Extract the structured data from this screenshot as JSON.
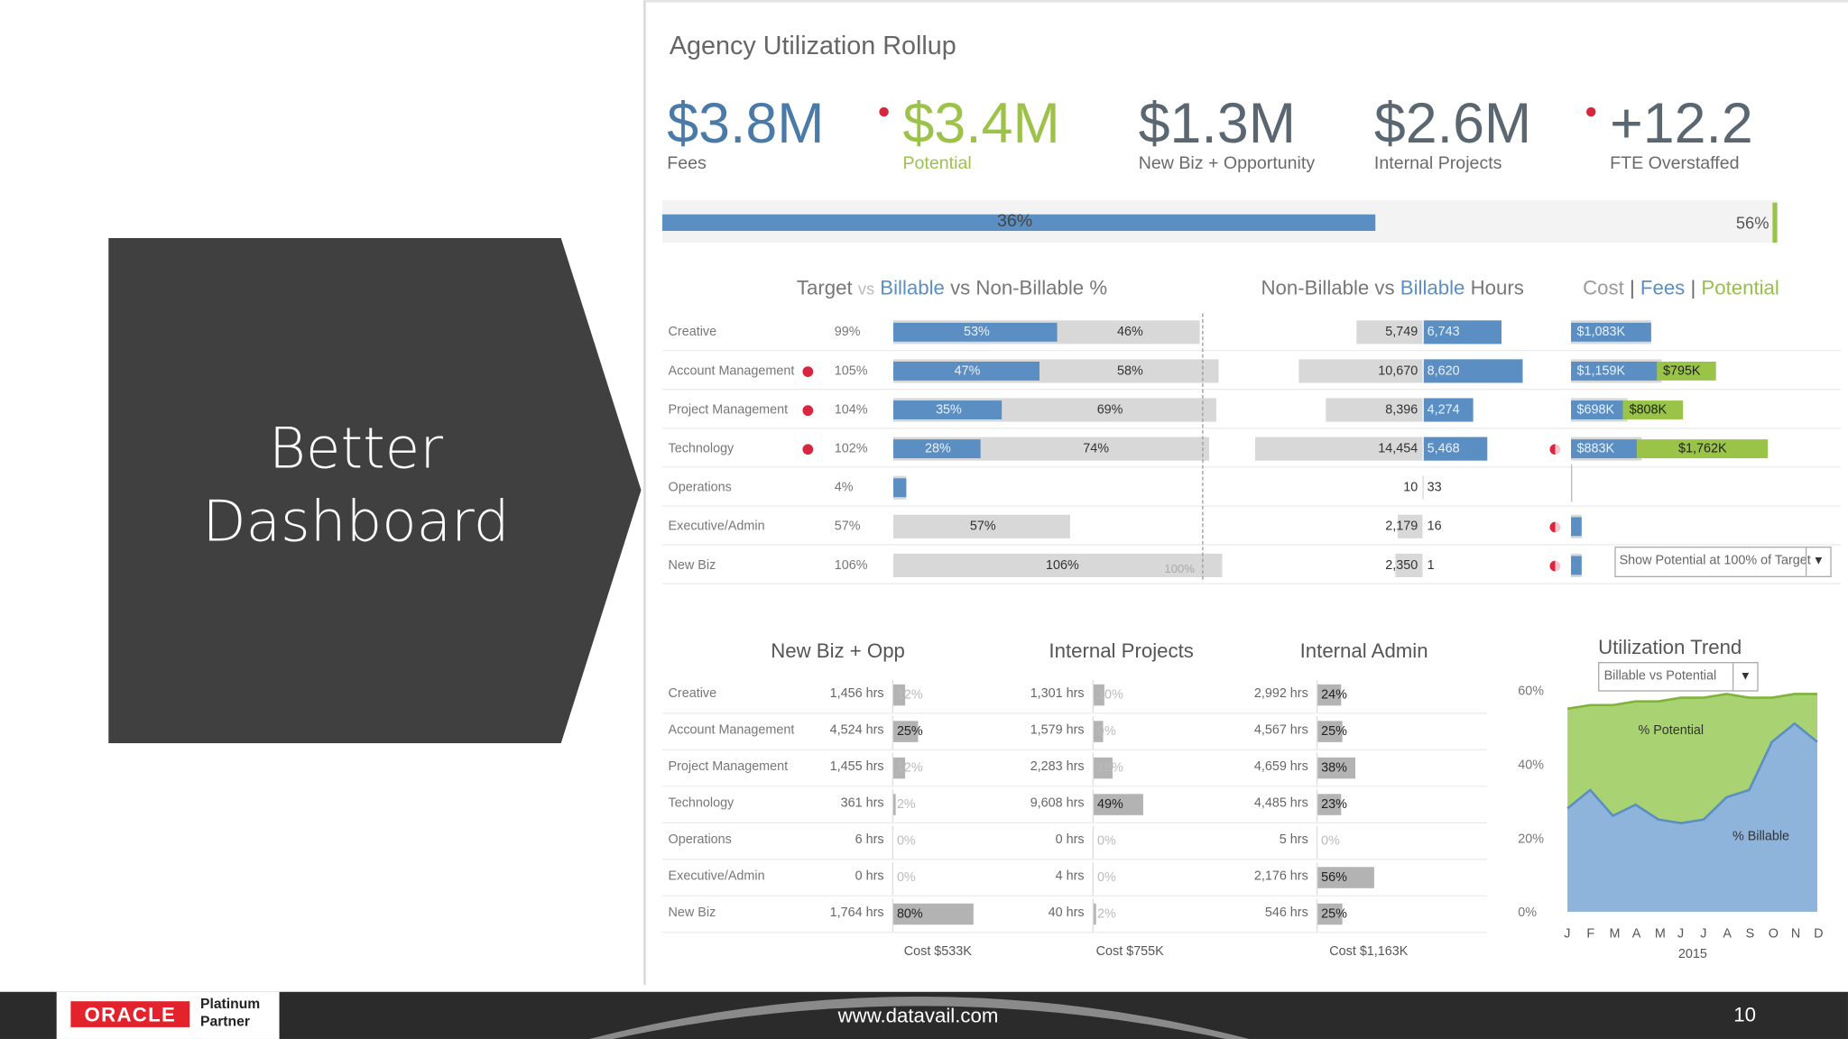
{
  "slide": {
    "title_line1": "Better",
    "title_line2": "Dashboard",
    "url": "www.datavail.com",
    "page_number": "10"
  },
  "branding": {
    "oracle": "ORACLE",
    "partner_line1": "Platinum",
    "partner_line2": "Partner"
  },
  "dashboard": {
    "title": "Agency Utilization Rollup",
    "kpis": [
      {
        "value": "$3.8M",
        "label": "Fees"
      },
      {
        "value": "$3.4M",
        "label": "Potential",
        "flag": true
      },
      {
        "value": "$1.3M",
        "label": "New Biz + Opportunity"
      },
      {
        "value": "$2.6M",
        "label": "Internal Projects"
      },
      {
        "value": "+12.2",
        "label": "FTE Overstaffed",
        "flag": true
      }
    ],
    "progress": {
      "fill_percent": 56,
      "mid_label": "36%",
      "end_label": "56%"
    },
    "section1": {
      "title_target": "Target",
      "title_vs1": "vs",
      "title_billable": "Billable",
      "title_rest": "vs Non-Billable %",
      "hours_title_1": "Non-Billable vs",
      "hours_title_2": "Billable",
      "hours_title_3": "Hours",
      "cost_title_cost": "Cost",
      "cost_title_fees": "Fees",
      "cost_title_potential": "Potential",
      "sep": "|",
      "marker_100": "100%",
      "potential_select": "Show Potential at 100% of Target",
      "rows": [
        {
          "name": "Creative",
          "flag": false,
          "target": "99%",
          "billable": 53,
          "billable_lbl": "53%",
          "nonbillable": 46,
          "nonbillable_lbl": "46%",
          "nb_hours": 5749,
          "nb_hours_lbl": "5,749",
          "b_hours": 6743,
          "b_hours_lbl": "6,743",
          "half": false,
          "cost": 1083,
          "cost_lbl": "$1,083K",
          "pot": 0,
          "pot_lbl": ""
        },
        {
          "name": "Account Management",
          "flag": true,
          "target": "105%",
          "billable": 47,
          "billable_lbl": "47%",
          "nonbillable": 58,
          "nonbillable_lbl": "58%",
          "nb_hours": 10670,
          "nb_hours_lbl": "10,670",
          "b_hours": 8620,
          "b_hours_lbl": "8,620",
          "half": false,
          "cost": 1159,
          "cost_lbl": "$1,159K",
          "pot": 795,
          "pot_lbl": "$795K"
        },
        {
          "name": "Project Management",
          "flag": true,
          "target": "104%",
          "billable": 35,
          "billable_lbl": "35%",
          "nonbillable": 69,
          "nonbillable_lbl": "69%",
          "nb_hours": 8396,
          "nb_hours_lbl": "8,396",
          "b_hours": 4274,
          "b_hours_lbl": "4,274",
          "half": false,
          "cost": 698,
          "cost_lbl": "$698K",
          "pot": 808,
          "pot_lbl": "$808K"
        },
        {
          "name": "Technology",
          "flag": true,
          "target": "102%",
          "billable": 28,
          "billable_lbl": "28%",
          "nonbillable": 74,
          "nonbillable_lbl": "74%",
          "nb_hours": 14454,
          "nb_hours_lbl": "14,454",
          "b_hours": 5468,
          "b_hours_lbl": "5,468",
          "half": true,
          "cost": 883,
          "cost_lbl": "$883K",
          "pot": 1762,
          "pot_lbl": "$1,762K"
        },
        {
          "name": "Operations",
          "flag": false,
          "target": "4%",
          "billable": 4,
          "billable_lbl": "",
          "nonbillable": 0,
          "nonbillable_lbl": "",
          "nb_hours": 10,
          "nb_hours_lbl": "10",
          "b_hours": 33,
          "b_hours_lbl": "33",
          "half": false,
          "cost": 0,
          "cost_lbl": "",
          "pot": 0,
          "pot_lbl": ""
        },
        {
          "name": "Executive/Admin",
          "flag": false,
          "target": "57%",
          "billable": 0,
          "billable_lbl": "",
          "nonbillable": 57,
          "nonbillable_lbl": "57%",
          "nb_hours": 2179,
          "nb_hours_lbl": "2,179",
          "b_hours": 16,
          "b_hours_lbl": "16",
          "half": true,
          "cost": 30,
          "cost_lbl": "",
          "pot": 0,
          "pot_lbl": ""
        },
        {
          "name": "New Biz",
          "flag": false,
          "target": "106%",
          "billable": 0,
          "billable_lbl": "",
          "nonbillable": 106,
          "nonbillable_lbl": "106%",
          "nb_hours": 2350,
          "nb_hours_lbl": "2,350",
          "b_hours": 1,
          "b_hours_lbl": "1",
          "half": true,
          "cost": 30,
          "cost_lbl": "",
          "pot": 0,
          "pot_lbl": ""
        }
      ]
    },
    "section2": {
      "titles": [
        "New Biz + Opp",
        "Internal Projects",
        "Internal Admin"
      ],
      "costs": [
        "Cost  $533K",
        "Cost  $755K",
        "Cost  $1,163K"
      ],
      "rows": [
        {
          "name": "Creative",
          "nb_hrs": "1,456 hrs",
          "nb_pct": 12,
          "nb_lbl": "12%",
          "ip_hrs": "1,301 hrs",
          "ip_pct": 10,
          "ip_lbl": "10%",
          "ia_hrs": "2,992 hrs",
          "ia_pct": 24,
          "ia_lbl": "24%"
        },
        {
          "name": "Account Management",
          "nb_hrs": "4,524 hrs",
          "nb_pct": 25,
          "nb_lbl": "25%",
          "ip_hrs": "1,579 hrs",
          "ip_pct": 9,
          "ip_lbl": "9%",
          "ia_hrs": "4,567 hrs",
          "ia_pct": 25,
          "ia_lbl": "25%"
        },
        {
          "name": "Project Management",
          "nb_hrs": "1,455 hrs",
          "nb_pct": 12,
          "nb_lbl": "12%",
          "ip_hrs": "2,283 hrs",
          "ip_pct": 19,
          "ip_lbl": "19%",
          "ia_hrs": "4,659 hrs",
          "ia_pct": 38,
          "ia_lbl": "38%"
        },
        {
          "name": "Technology",
          "nb_hrs": "361 hrs",
          "nb_pct": 2,
          "nb_lbl": "2%",
          "ip_hrs": "9,608 hrs",
          "ip_pct": 49,
          "ip_lbl": "49%",
          "ia_hrs": "4,485 hrs",
          "ia_pct": 23,
          "ia_lbl": "23%"
        },
        {
          "name": "Operations",
          "nb_hrs": "6 hrs",
          "nb_pct": 0,
          "nb_lbl": "0%",
          "ip_hrs": "0 hrs",
          "ip_pct": 0,
          "ip_lbl": "0%",
          "ia_hrs": "5 hrs",
          "ia_pct": 0,
          "ia_lbl": "0%"
        },
        {
          "name": "Executive/Admin",
          "nb_hrs": "0 hrs",
          "nb_pct": 0,
          "nb_lbl": "0%",
          "ip_hrs": "4 hrs",
          "ip_pct": 0,
          "ip_lbl": "0%",
          "ia_hrs": "2,176 hrs",
          "ia_pct": 56,
          "ia_lbl": "56%"
        },
        {
          "name": "New Biz",
          "nb_hrs": "1,764 hrs",
          "nb_pct": 80,
          "nb_lbl": "80%",
          "ip_hrs": "40 hrs",
          "ip_pct": 2,
          "ip_lbl": "2%",
          "ia_hrs": "546 hrs",
          "ia_pct": 25,
          "ia_lbl": "25%"
        }
      ]
    },
    "trend": {
      "title": "Utilization Trend",
      "select": "Billable vs Potential",
      "potential_label": "% Potential",
      "billable_label": "% Billable",
      "year": "2015"
    }
  },
  "chart_data": {
    "type": "area",
    "title": "Utilization Trend",
    "x": [
      "J",
      "F",
      "M",
      "A",
      "M",
      "J",
      "J",
      "A",
      "S",
      "O",
      "N",
      "D"
    ],
    "series": [
      {
        "name": "% Potential",
        "values": [
          55,
          56,
          56,
          57,
          57,
          58,
          58,
          59,
          58,
          58,
          59,
          59
        ]
      },
      {
        "name": "% Billable",
        "values": [
          28,
          33,
          26,
          29,
          25,
          24,
          25,
          31,
          33,
          46,
          51,
          46
        ]
      }
    ],
    "ylim": [
      0,
      60
    ],
    "yticks": [
      "60%",
      "40%",
      "20%",
      "0%"
    ],
    "colors": {
      "potential": "#a9d372",
      "billable": "#8fb4dc",
      "billable_line": "#5b8fc3",
      "potential_line": "#7fb33a"
    }
  }
}
